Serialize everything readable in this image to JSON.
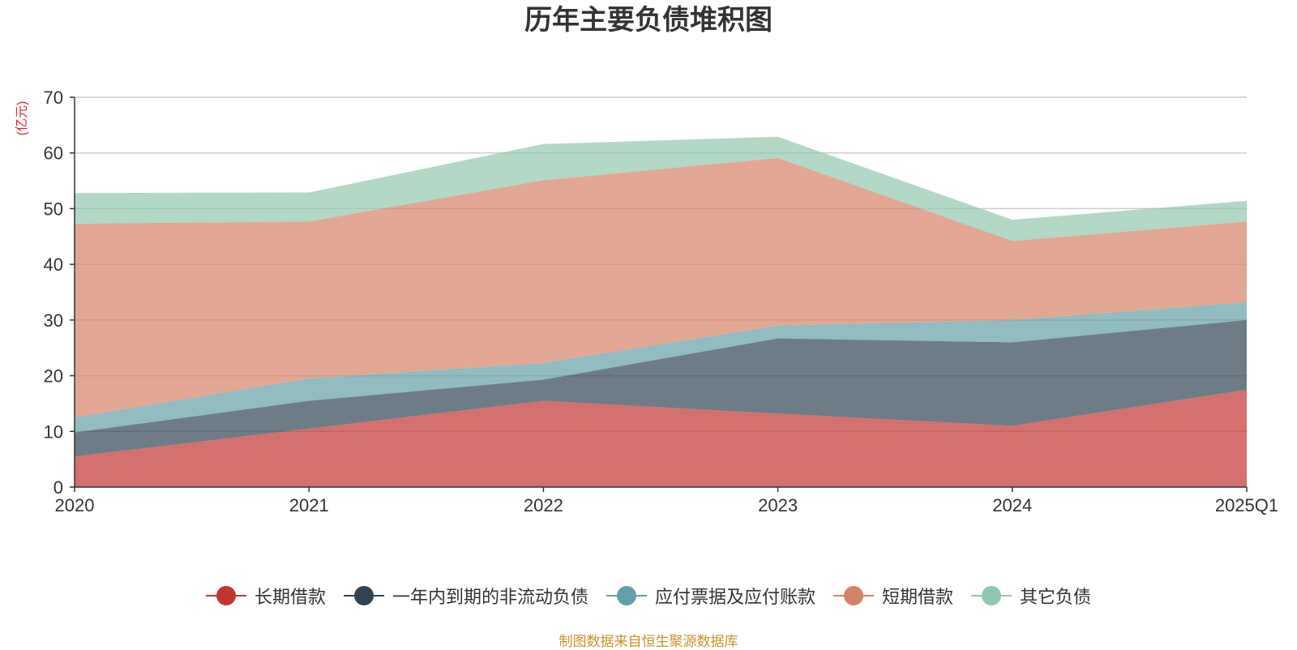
{
  "chart_data": {
    "type": "area",
    "stacked": true,
    "title": "历年主要负债堆积图",
    "ylabel": "(亿元)",
    "xlabel": "",
    "categories": [
      "2020",
      "2021",
      "2022",
      "2023",
      "2024",
      "2025Q1"
    ],
    "ylim": [
      0,
      70
    ],
    "yticks": [
      0,
      10,
      20,
      30,
      40,
      50,
      60,
      70
    ],
    "grid": true,
    "legend_position": "bottom",
    "series": [
      {
        "name": "长期借款",
        "color": "#c23531",
        "values": [
          5.5,
          10.5,
          15.5,
          13.2,
          11.0,
          17.5
        ]
      },
      {
        "name": "一年内到期的非流动负债",
        "color": "#2f4554",
        "values": [
          4.3,
          5.0,
          3.8,
          13.5,
          15.0,
          12.5
        ]
      },
      {
        "name": "应付票据及应付账款",
        "color": "#61a0a8",
        "values": [
          2.7,
          4.0,
          3.0,
          2.3,
          4.0,
          3.2
        ]
      },
      {
        "name": "短期借款",
        "color": "#d48265",
        "values": [
          34.8,
          28.2,
          32.8,
          30.1,
          14.2,
          14.5
        ]
      },
      {
        "name": "其它负债",
        "color": "#91c7ae",
        "values": [
          5.5,
          5.2,
          6.5,
          3.8,
          3.8,
          3.7
        ]
      }
    ]
  },
  "source_note": "制图数据来自恒生聚源数据库"
}
